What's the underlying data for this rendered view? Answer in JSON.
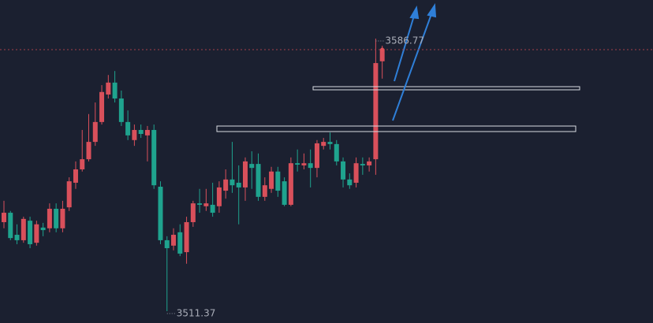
{
  "chart_data": {
    "type": "candlestick",
    "up_color": "#d9505b",
    "down_color": "#1fa38e",
    "open": [
      3536.0,
      3538.6,
      3532.5,
      3531.0,
      3536.4,
      3530.3,
      3534.5,
      3534.3,
      3539.7,
      3534.3,
      3540.1,
      3546.9,
      3550.6,
      3553.4,
      3558.2,
      3563.7,
      3571.3,
      3574.6,
      3570.2,
      3563.7,
      3558.7,
      3561.5,
      3560.0,
      3561.5,
      3545.8,
      3531.0,
      3529.5,
      3533.2,
      3527.7,
      3536.0,
      3541.2,
      3540.4,
      3540.8,
      3540.4,
      3544.7,
      3547.8,
      3546.9,
      3545.6,
      3552.1,
      3552.1,
      3543.0,
      3545.2,
      3550.0,
      3547.3,
      3540.8,
      3552.3,
      3551.7,
      3552.3,
      3551.0,
      3557.1,
      3558.2,
      3557.6,
      3552.8,
      3547.8,
      3546.9,
      3552.1,
      3551.7,
      3553.4,
      3580.5
    ],
    "high": [
      3541.9,
      3539.1,
      3535.4,
      3537.5,
      3537.5,
      3536.4,
      3535.8,
      3541.2,
      3541.2,
      3541.9,
      3548.4,
      3552.8,
      3561.5,
      3565.9,
      3569.1,
      3573.9,
      3576.7,
      3577.8,
      3572.4,
      3566.9,
      3563.0,
      3563.0,
      3562.6,
      3563.0,
      3547.3,
      3532.1,
      3534.3,
      3535.4,
      3537.5,
      3541.9,
      3545.2,
      3545.2,
      3546.9,
      3547.3,
      3550.6,
      3558.2,
      3551.7,
      3553.9,
      3555.6,
      3555.0,
      3548.4,
      3551.3,
      3551.3,
      3548.4,
      3553.9,
      3556.1,
      3555.0,
      3556.1,
      3558.7,
      3559.3,
      3560.8,
      3558.7,
      3553.9,
      3549.5,
      3553.9,
      3553.9,
      3553.9,
      3586.77,
      3584.8
    ],
    "low": [
      3534.3,
      3531.0,
      3529.9,
      3530.3,
      3528.8,
      3529.5,
      3532.1,
      3533.2,
      3533.2,
      3533.2,
      3539.1,
      3545.2,
      3550.0,
      3552.8,
      3557.1,
      3563.0,
      3570.2,
      3569.1,
      3562.6,
      3558.7,
      3557.1,
      3559.3,
      3552.8,
      3545.2,
      3529.9,
      3511.37,
      3528.2,
      3526.6,
      3524.5,
      3534.7,
      3538.6,
      3539.1,
      3537.5,
      3538.6,
      3542.5,
      3544.1,
      3535.4,
      3541.9,
      3545.2,
      3541.9,
      3541.9,
      3544.1,
      3543.0,
      3540.4,
      3540.4,
      3550.0,
      3550.6,
      3545.6,
      3548.4,
      3556.1,
      3556.1,
      3551.7,
      3545.6,
      3545.2,
      3545.6,
      3549.1,
      3550.0,
      3549.1,
      3575.7
    ],
    "close": [
      3538.6,
      3531.6,
      3531.0,
      3536.9,
      3529.9,
      3535.4,
      3533.8,
      3539.7,
      3534.3,
      3539.7,
      3547.3,
      3550.6,
      3553.4,
      3558.2,
      3563.7,
      3572.0,
      3574.6,
      3570.2,
      3563.7,
      3560.0,
      3561.5,
      3560.4,
      3561.5,
      3546.2,
      3531.0,
      3528.8,
      3532.5,
      3527.3,
      3536.0,
      3541.2,
      3540.8,
      3541.2,
      3538.6,
      3545.6,
      3547.8,
      3546.2,
      3545.6,
      3552.8,
      3551.0,
      3543.0,
      3546.2,
      3550.0,
      3544.7,
      3540.8,
      3552.3,
      3551.9,
      3552.3,
      3551.0,
      3557.8,
      3558.2,
      3557.6,
      3552.8,
      3547.8,
      3546.2,
      3552.3,
      3551.7,
      3552.8,
      3580.0,
      3583.9
    ]
  }
}
